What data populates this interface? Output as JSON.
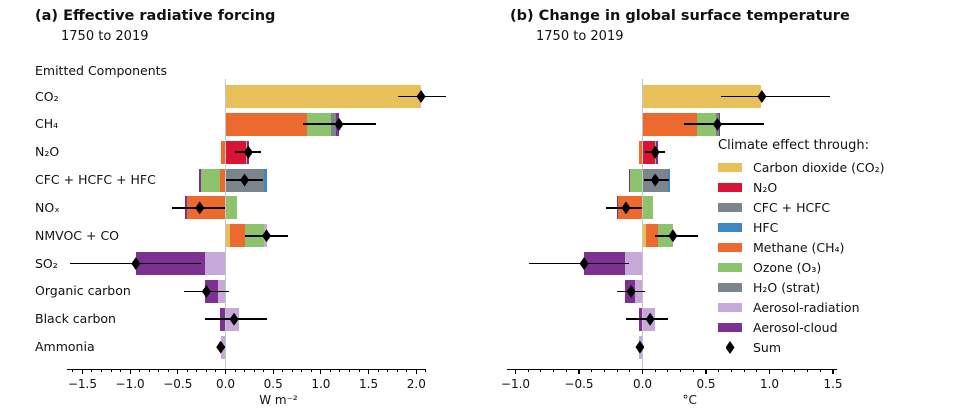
{
  "colors": {
    "co2": "#e7c05a",
    "n2o": "#d91336",
    "cfc_hcfc": "#7a858d",
    "hfc": "#3d88c4",
    "ch4": "#ed6a2f",
    "o3": "#8cc36c",
    "h2o_strat": "#7a858d",
    "aer_rad": "#c6a9d8",
    "aer_cloud": "#7c3190",
    "sum": "#000000",
    "zero_line": "#c6c6c6",
    "text": "#111111"
  },
  "legend": {
    "title": "Climate effect through:",
    "items": [
      {
        "key": "co2",
        "label": "Carbon dioxide (CO₂)"
      },
      {
        "key": "n2o",
        "label": "N₂O"
      },
      {
        "key": "cfc_hcfc",
        "label": "CFC + HCFC"
      },
      {
        "key": "hfc",
        "label": "HFC"
      },
      {
        "key": "ch4",
        "label": "Methane (CH₄)"
      },
      {
        "key": "o3",
        "label": "Ozone (O₃)"
      },
      {
        "key": "h2o_strat",
        "label": "H₂O (strat)"
      },
      {
        "key": "aer_rad",
        "label": "Aerosol-radiation"
      },
      {
        "key": "aer_cloud",
        "label": "Aerosol-cloud"
      },
      {
        "key": "sum",
        "label": "Sum"
      }
    ]
  },
  "chart_data": [
    {
      "id": "erf",
      "type": "bar",
      "orientation": "horizontal",
      "stacked": true,
      "title": "(a) Effective radiative forcing",
      "subtitle": "1750 to 2019",
      "group_label": "Emitted Components",
      "xlabel": "W m⁻²",
      "axis": {
        "min": -1.66,
        "max": 2.1,
        "minor_step": 0.1,
        "ticks": [
          {
            "v": -1.5,
            "label": "−1.5"
          },
          {
            "v": -1.0,
            "label": "−1.0"
          },
          {
            "v": -0.5,
            "label": "−0.5"
          },
          {
            "v": 0.0,
            "label": "0.0"
          },
          {
            "v": 0.5,
            "label": "0.5"
          },
          {
            "v": 1.0,
            "label": "1.0"
          },
          {
            "v": 1.5,
            "label": "1.5"
          },
          {
            "v": 2.0,
            "label": "2.0"
          }
        ]
      },
      "rows": [
        {
          "label": "CO₂",
          "segments": [
            {
              "c": "co2",
              "from": 0,
              "to": 2.05
            }
          ],
          "sum": 2.05,
          "lo": 1.81,
          "hi": 2.31
        },
        {
          "label": "CH₄",
          "segments": [
            {
              "c": "ch4",
              "from": 0,
              "to": 0.85
            },
            {
              "c": "o3",
              "from": 0.85,
              "to": 1.11
            },
            {
              "c": "h2o_strat",
              "from": 1.11,
              "to": 1.16
            },
            {
              "c": "aer_cloud",
              "from": 1.16,
              "to": 1.19
            }
          ],
          "sum": 1.19,
          "lo": 0.81,
          "hi": 1.58
        },
        {
          "label": "N₂O",
          "segments": [
            {
              "c": "ch4",
              "from": -0.05,
              "to": 0
            },
            {
              "c": "n2o",
              "from": 0,
              "to": 0.21
            },
            {
              "c": "o3",
              "from": 0.21,
              "to": 0.23
            },
            {
              "c": "aer_cloud",
              "from": 0.23,
              "to": 0.25
            }
          ],
          "sum": 0.24,
          "lo": 0.1,
          "hi": 0.37
        },
        {
          "label": "CFC + HCFC + HFC",
          "segments": [
            {
              "c": "aer_cloud",
              "from": -0.28,
              "to": -0.26
            },
            {
              "c": "o3",
              "from": -0.26,
              "to": -0.06
            },
            {
              "c": "ch4",
              "from": -0.06,
              "to": 0
            },
            {
              "c": "cfc_hcfc",
              "from": 0,
              "to": 0.4
            },
            {
              "c": "hfc",
              "from": 0.4,
              "to": 0.44
            }
          ],
          "sum": 0.2,
          "lo": 0.01,
          "hi": 0.39
        },
        {
          "label": "NOₓ",
          "segments": [
            {
              "c": "aer_cloud",
              "from": -0.42,
              "to": -0.4
            },
            {
              "c": "ch4",
              "from": -0.4,
              "to": 0
            },
            {
              "c": "o3",
              "from": 0,
              "to": 0.12
            }
          ],
          "sum": -0.27,
          "lo": -0.56,
          "hi": 0.0
        },
        {
          "label": "NMVOC + CO",
          "segments": [
            {
              "c": "co2",
              "from": 0,
              "to": 0.05
            },
            {
              "c": "ch4",
              "from": 0.05,
              "to": 0.2
            },
            {
              "c": "o3",
              "from": 0.2,
              "to": 0.4
            },
            {
              "c": "aer_rad",
              "from": 0.4,
              "to": 0.43
            }
          ],
          "sum": 0.43,
          "lo": 0.2,
          "hi": 0.66
        },
        {
          "label": "SO₂",
          "segments": [
            {
              "c": "aer_cloud",
              "from": -0.94,
              "to": -0.22
            },
            {
              "c": "aer_rad",
              "from": -0.22,
              "to": 0
            }
          ],
          "sum": -0.94,
          "lo": -1.63,
          "hi": -0.26
        },
        {
          "label": "Organic carbon",
          "segments": [
            {
              "c": "aer_cloud",
              "from": -0.22,
              "to": -0.08
            },
            {
              "c": "aer_rad",
              "from": -0.08,
              "to": 0
            }
          ],
          "sum": -0.2,
          "lo": -0.43,
          "hi": 0.04
        },
        {
          "label": "Black carbon",
          "segments": [
            {
              "c": "aer_cloud",
              "from": -0.06,
              "to": 0
            },
            {
              "c": "aer_rad",
              "from": 0,
              "to": 0.14
            }
          ],
          "sum": 0.09,
          "lo": -0.21,
          "hi": 0.43
        },
        {
          "label": "Ammonia",
          "segments": [
            {
              "c": "aer_rad",
              "from": -0.05,
              "to": 0
            }
          ],
          "sum": -0.05,
          "lo": -0.08,
          "hi": 0.0
        }
      ]
    },
    {
      "id": "gsat",
      "type": "bar",
      "orientation": "horizontal",
      "stacked": true,
      "title": "(b) Change in global surface temperature",
      "subtitle": "1750 to 2019",
      "xlabel": "°C",
      "axis": {
        "min": -1.07,
        "max": 1.53,
        "minor_step": 0.1,
        "ticks": [
          {
            "v": -1.0,
            "label": "−1.0"
          },
          {
            "v": -0.5,
            "label": "−0.5"
          },
          {
            "v": 0.0,
            "label": "0.0"
          },
          {
            "v": 0.5,
            "label": "0.5"
          },
          {
            "v": 1.0,
            "label": "1.0"
          },
          {
            "v": 1.5,
            "label": "1.5"
          }
        ]
      },
      "rows": [
        {
          "label": "CO₂",
          "segments": [
            {
              "c": "co2",
              "from": 0,
              "to": 0.93
            }
          ],
          "sum": 0.94,
          "lo": 0.62,
          "hi": 1.48
        },
        {
          "label": "CH₄",
          "segments": [
            {
              "c": "ch4",
              "from": 0,
              "to": 0.43
            },
            {
              "c": "o3",
              "from": 0.43,
              "to": 0.58
            },
            {
              "c": "h2o_strat",
              "from": 0.58,
              "to": 0.6
            },
            {
              "c": "aer_cloud",
              "from": 0.6,
              "to": 0.61
            }
          ],
          "sum": 0.59,
          "lo": 0.33,
          "hi": 0.96
        },
        {
          "label": "N₂O",
          "segments": [
            {
              "c": "ch4",
              "from": -0.03,
              "to": 0
            },
            {
              "c": "n2o",
              "from": 0,
              "to": 0.1
            },
            {
              "c": "o3",
              "from": 0.1,
              "to": 0.11
            },
            {
              "c": "aer_cloud",
              "from": 0.11,
              "to": 0.12
            }
          ],
          "sum": 0.1,
          "lo": 0.02,
          "hi": 0.18
        },
        {
          "label": "CFC + HCFC + HFC",
          "segments": [
            {
              "c": "aer_cloud",
              "from": -0.11,
              "to": -0.1
            },
            {
              "c": "o3",
              "from": -0.1,
              "to": 0
            },
            {
              "c": "cfc_hcfc",
              "from": 0,
              "to": 0.2
            },
            {
              "c": "hfc",
              "from": 0.2,
              "to": 0.22
            }
          ],
          "sum": 0.1,
          "lo": 0.01,
          "hi": 0.21
        },
        {
          "label": "NOₓ",
          "segments": [
            {
              "c": "aer_cloud",
              "from": -0.2,
              "to": -0.19
            },
            {
              "c": "ch4",
              "from": -0.19,
              "to": 0
            },
            {
              "c": "o3",
              "from": 0,
              "to": 0.08
            }
          ],
          "sum": -0.13,
          "lo": -0.29,
          "hi": 0.0
        },
        {
          "label": "NMVOC + CO",
          "segments": [
            {
              "c": "co2",
              "from": 0,
              "to": 0.03
            },
            {
              "c": "ch4",
              "from": 0.03,
              "to": 0.12
            },
            {
              "c": "o3",
              "from": 0.12,
              "to": 0.24
            }
          ],
          "sum": 0.24,
          "lo": 0.1,
          "hi": 0.44
        },
        {
          "label": "SO₂",
          "segments": [
            {
              "c": "aer_cloud",
              "from": -0.46,
              "to": -0.14
            },
            {
              "c": "aer_rad",
              "from": -0.14,
              "to": 0
            }
          ],
          "sum": -0.46,
          "lo": -0.89,
          "hi": -0.11
        },
        {
          "label": "Organic carbon",
          "segments": [
            {
              "c": "aer_cloud",
              "from": -0.14,
              "to": -0.06
            },
            {
              "c": "aer_rad",
              "from": -0.06,
              "to": 0
            }
          ],
          "sum": -0.09,
          "lo": -0.2,
          "hi": 0.02
        },
        {
          "label": "Black carbon",
          "segments": [
            {
              "c": "aer_cloud",
              "from": -0.03,
              "to": 0
            },
            {
              "c": "aer_rad",
              "from": 0,
              "to": 0.1
            }
          ],
          "sum": 0.06,
          "lo": -0.13,
          "hi": 0.2
        },
        {
          "label": "Ammonia",
          "segments": [
            {
              "c": "aer_rad",
              "from": -0.03,
              "to": 0
            }
          ],
          "sum": -0.02,
          "lo": -0.04,
          "hi": 0.01
        }
      ]
    }
  ]
}
